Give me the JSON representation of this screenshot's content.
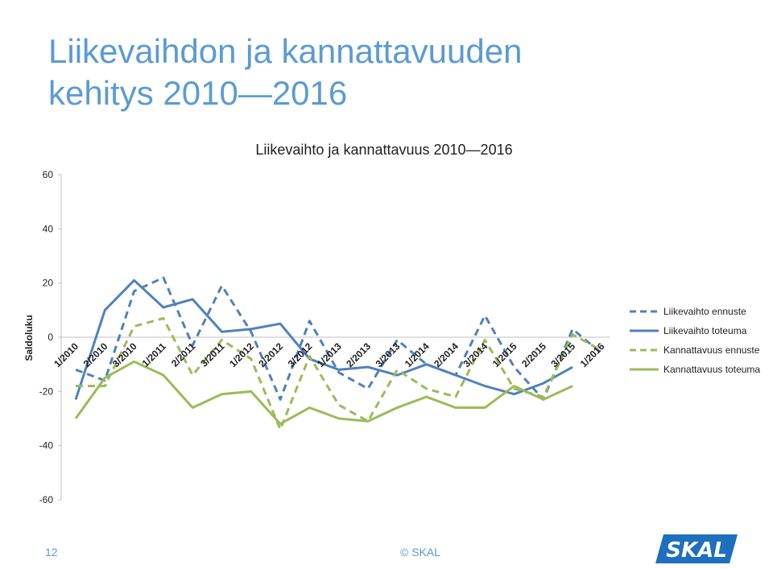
{
  "slide": {
    "title_line1": "Liikevaihdon ja kannattavuuden",
    "title_line2": "kehitys 2010—2016",
    "page_number": "12",
    "copyright": "© SKAL",
    "logo_text": "SKAL"
  },
  "colors": {
    "blue": "#4f81bd",
    "green": "#9bbb59",
    "title": "#5b9bd5"
  },
  "chart_data": {
    "type": "line",
    "title": "Liikevaihto ja kannattavuus 2010—2016",
    "ylabel": "Saldoluku",
    "xlabel": "",
    "ylim": [
      -60,
      60
    ],
    "yticks": [
      60,
      40,
      20,
      0,
      -20,
      -40,
      -60
    ],
    "categories": [
      "1/2010",
      "2/2010",
      "3/2010",
      "1/2011",
      "2/2011",
      "3/2011",
      "1/2012",
      "2/2012",
      "3/2012",
      "1/2013",
      "2/2013",
      "3/2013",
      "1/2014",
      "2/2014",
      "3/2014",
      "1/2015",
      "2/2015",
      "3/2015",
      "1/2016"
    ],
    "legend_position": "right",
    "grid": false,
    "series": [
      {
        "name": "Liikevaihto ennuste",
        "style": "dashed",
        "color": "#4f81bd",
        "x": [
          0,
          1,
          2,
          3,
          4,
          5,
          6,
          7,
          8,
          9,
          10,
          11,
          12,
          13,
          14,
          15,
          16,
          17,
          18
        ],
        "values": [
          -12,
          -16,
          17,
          22,
          -3,
          19,
          2,
          -23,
          6,
          -13,
          -19,
          -1,
          -10,
          -14,
          8,
          -11,
          -23,
          3,
          -6
        ]
      },
      {
        "name": "Liikevaihto toteuma",
        "style": "solid",
        "color": "#4f81bd",
        "x": [
          0,
          1,
          2,
          3,
          4,
          5,
          6,
          7,
          8,
          9,
          10,
          11,
          12,
          13,
          14,
          15,
          16,
          17
        ],
        "values": [
          -23,
          10,
          21,
          11,
          14,
          2,
          3,
          5,
          -8,
          -12,
          -11,
          -14,
          -10,
          -14,
          -18,
          -21,
          -17,
          -11
        ]
      },
      {
        "name": "Kannattavuus ennuste",
        "style": "dashed",
        "color": "#9bbb59",
        "x": [
          0,
          1,
          2,
          3,
          4,
          5,
          6,
          7,
          8,
          9,
          10,
          11,
          12,
          13,
          14,
          15,
          16,
          17,
          18
        ],
        "values": [
          -18,
          -18,
          4,
          7,
          -14,
          -1,
          -8,
          -34,
          -7,
          -25,
          -31,
          -12,
          -19,
          -22,
          -1,
          -19,
          -22,
          1,
          -5
        ]
      },
      {
        "name": "Kannattavuus toteuma",
        "style": "solid",
        "color": "#9bbb59",
        "x": [
          0,
          1,
          2,
          3,
          4,
          5,
          6,
          7,
          8,
          9,
          10,
          11,
          12,
          13,
          14,
          15,
          16,
          17
        ],
        "values": [
          -30,
          -15,
          -9,
          -14,
          -26,
          -21,
          -20,
          -32,
          -26,
          -30,
          -31,
          -26,
          -22,
          -26,
          -26,
          -18,
          -23,
          -18
        ]
      }
    ]
  }
}
